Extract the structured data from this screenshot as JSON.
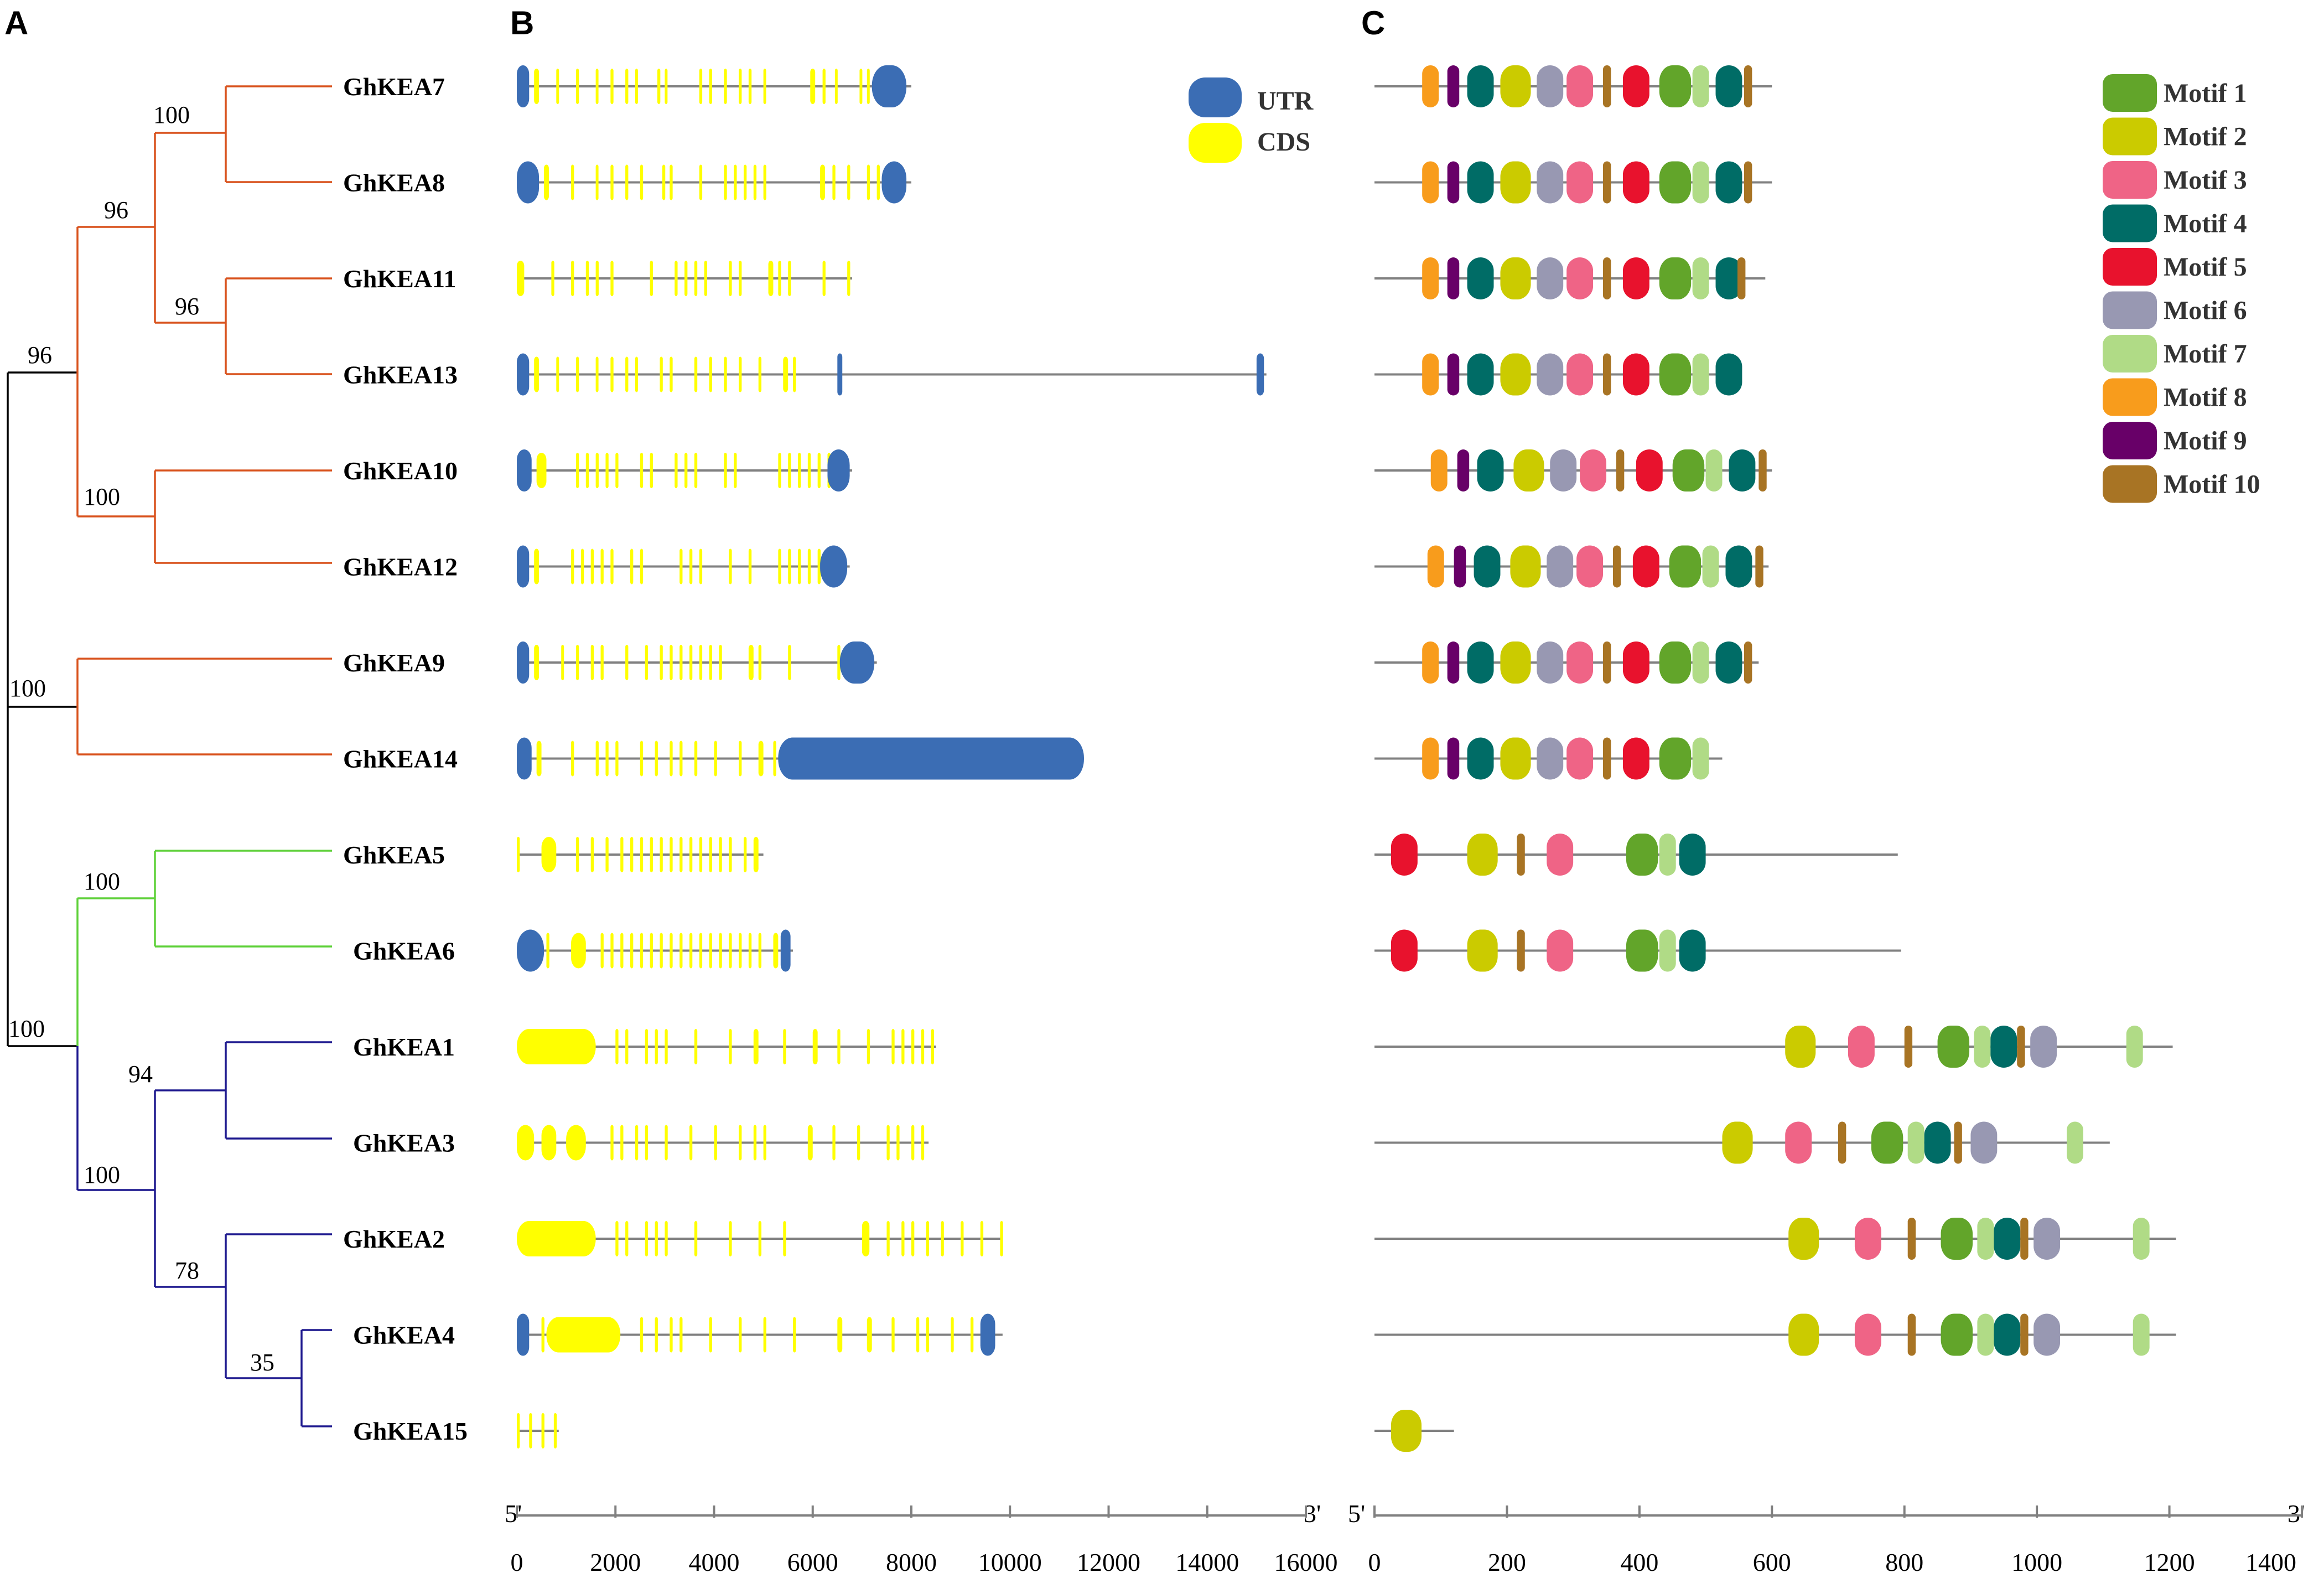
{
  "panels": {
    "a": "A",
    "b": "B",
    "c": "C"
  },
  "genes": [
    "GhKEA7",
    "GhKEA8",
    "GhKEA11",
    "GhKEA13",
    "GhKEA10",
    "GhKEA12",
    "GhKEA9",
    "GhKEA14",
    "GhKEA5",
    "GhKEA6",
    "GhKEA1",
    "GhKEA3",
    "GhKEA2",
    "GhKEA4",
    "GhKEA15"
  ],
  "bootstrap": [
    "100",
    "96",
    "96",
    "96",
    "100",
    "100",
    "100",
    "100",
    "100",
    "94",
    "100",
    "78",
    "35"
  ],
  "colors": {
    "clade_orange": "#d9531e",
    "clade_green": "#5fd13a",
    "clade_blue": "#1f1a8f",
    "root": "#000000",
    "utr": "#3b6db4",
    "cds": "#ffff00",
    "line": "#808080"
  },
  "gene_structure_legend": [
    {
      "label": "UTR",
      "color": "#3b6db4"
    },
    {
      "label": "CDS",
      "color": "#ffff00"
    }
  ],
  "gene_structure_axis": {
    "end5": "5'",
    "end3": "3'",
    "ticks": [
      "0",
      "2000",
      "4000",
      "6000",
      "8000",
      "10000",
      "12000",
      "14000",
      "16000"
    ],
    "min": 0,
    "max": 16000,
    "unit": "bp"
  },
  "gene_lengths_bp": [
    8000,
    8000,
    6800,
    15200,
    6800,
    6750,
    7300,
    11500,
    5000,
    5600,
    8500,
    8350,
    9850,
    9850,
    850
  ],
  "motif_legend": [
    {
      "label": "Motif 1",
      "color": "#62a52a"
    },
    {
      "label": "Motif 2",
      "color": "#cbcb00"
    },
    {
      "label": "Motif 3",
      "color": "#ef6486"
    },
    {
      "label": "Motif 4",
      "color": "#006c66"
    },
    {
      "label": "Motif 5",
      "color": "#e8122d"
    },
    {
      "label": "Motif 6",
      "color": "#9898b2"
    },
    {
      "label": "Motif 7",
      "color": "#b0db86"
    },
    {
      "label": "Motif 8",
      "color": "#f89c1c"
    },
    {
      "label": "Motif 9",
      "color": "#680068"
    },
    {
      "label": "Motif 10",
      "color": "#a87424"
    }
  ],
  "motif_axis": {
    "end5": "5'",
    "end3": "3'",
    "ticks": [
      "0",
      "200",
      "400",
      "600",
      "800",
      "1000",
      "1200",
      "1400"
    ],
    "min": 0,
    "max": 1400,
    "unit": "aa"
  },
  "protein_lengths_aa": [
    600,
    600,
    590,
    545,
    600,
    595,
    580,
    525,
    790,
    795,
    1205,
    1110,
    1210,
    1210,
    120
  ],
  "motif_order": [
    [
      8,
      9,
      4,
      2,
      6,
      3,
      10,
      5,
      1,
      7,
      4,
      10
    ],
    [
      8,
      9,
      4,
      2,
      6,
      3,
      10,
      5,
      1,
      7,
      4,
      10
    ],
    [
      8,
      9,
      4,
      2,
      6,
      3,
      10,
      5,
      1,
      7,
      4,
      10
    ],
    [
      8,
      9,
      4,
      2,
      6,
      3,
      10,
      5,
      1,
      7,
      4
    ],
    [
      8,
      9,
      4,
      2,
      6,
      3,
      10,
      5,
      1,
      7,
      4,
      10
    ],
    [
      8,
      9,
      4,
      2,
      6,
      3,
      10,
      5,
      1,
      7,
      4,
      10
    ],
    [
      8,
      9,
      4,
      2,
      6,
      3,
      10,
      5,
      1,
      7,
      4,
      10
    ],
    [
      8,
      9,
      4,
      2,
      6,
      3,
      10,
      5,
      1,
      7
    ],
    [
      5,
      2,
      10,
      3,
      1,
      7,
      4
    ],
    [
      5,
      2,
      10,
      3,
      1,
      7,
      4
    ],
    [
      2,
      3,
      10,
      1,
      7,
      4,
      10,
      6,
      7
    ],
    [
      2,
      3,
      10,
      1,
      7,
      4,
      10,
      6,
      7
    ],
    [
      2,
      3,
      10,
      1,
      7,
      4,
      10,
      6,
      7
    ],
    [
      2,
      3,
      10,
      1,
      7,
      4,
      10,
      6,
      7
    ],
    [
      2
    ]
  ]
}
